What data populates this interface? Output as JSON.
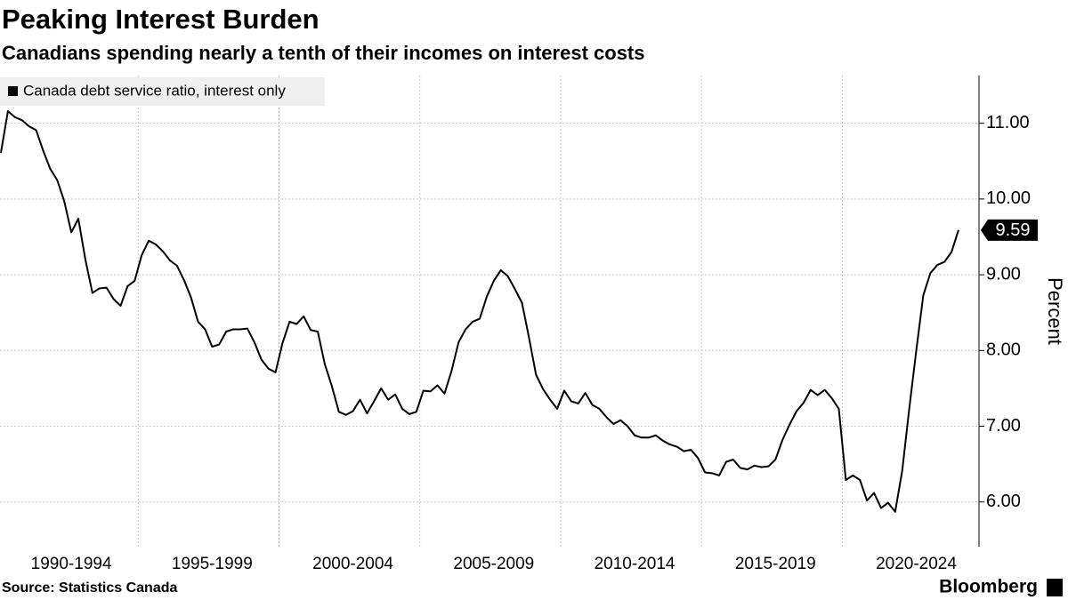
{
  "chart_data": {
    "type": "line",
    "title": "Peaking Interest Burden",
    "subtitle": "Canadians spending nearly a tenth of their incomes on interest costs",
    "y_axis_label": "Percent",
    "y_axis_position": "right",
    "legend_position": "top-left",
    "grid": true,
    "source": "Source: Statistics Canada",
    "brand": "Bloomberg",
    "categories": [
      null,
      null,
      null,
      null,
      null,
      null,
      null,
      null,
      null,
      null,
      "1990-1994",
      null,
      null,
      null,
      null,
      null,
      null,
      null,
      null,
      null,
      null,
      null,
      null,
      null,
      null,
      null,
      null,
      null,
      null,
      null,
      "1995-1999",
      null,
      null,
      null,
      null,
      null,
      null,
      null,
      null,
      null,
      null,
      null,
      null,
      null,
      null,
      null,
      null,
      null,
      null,
      null,
      "2000-2004",
      null,
      null,
      null,
      null,
      null,
      null,
      null,
      null,
      null,
      null,
      null,
      null,
      null,
      null,
      null,
      null,
      null,
      null,
      null,
      "2005-2009",
      null,
      null,
      null,
      null,
      null,
      null,
      null,
      null,
      null,
      null,
      null,
      null,
      null,
      null,
      null,
      null,
      null,
      null,
      null,
      "2010-2014",
      null,
      null,
      null,
      null,
      null,
      null,
      null,
      null,
      null,
      null,
      null,
      null,
      null,
      null,
      null,
      null,
      null,
      null,
      null,
      "2015-2019",
      null,
      null,
      null,
      null,
      null,
      null,
      null,
      null,
      null,
      null,
      null,
      null,
      null,
      null,
      null,
      null,
      null,
      null,
      null,
      "2020-2024",
      null,
      null,
      null,
      null,
      null,
      null
    ],
    "series": [
      {
        "name": "Canada debt service ratio, interest only",
        "color": "#000000",
        "values": [
          10.61,
          11.16,
          11.08,
          11.04,
          10.96,
          10.91,
          10.64,
          10.4,
          10.25,
          9.97,
          9.56,
          9.74,
          9.2,
          8.76,
          8.82,
          8.83,
          8.68,
          8.59,
          8.85,
          8.92,
          9.26,
          9.45,
          9.4,
          9.31,
          9.19,
          9.12,
          8.93,
          8.7,
          8.38,
          8.28,
          8.05,
          8.08,
          8.25,
          8.28,
          8.28,
          8.29,
          8.11,
          7.88,
          7.76,
          7.71,
          8.1,
          8.38,
          8.35,
          8.45,
          8.27,
          8.25,
          7.82,
          7.53,
          7.19,
          7.15,
          7.2,
          7.35,
          7.17,
          7.33,
          7.5,
          7.35,
          7.42,
          7.23,
          7.16,
          7.19,
          7.47,
          7.46,
          7.54,
          7.43,
          7.73,
          8.11,
          8.28,
          8.38,
          8.42,
          8.71,
          8.92,
          9.06,
          8.98,
          8.81,
          8.63,
          8.17,
          7.68,
          7.49,
          7.35,
          7.23,
          7.47,
          7.33,
          7.3,
          7.44,
          7.28,
          7.23,
          7.12,
          7.03,
          7.08,
          7.0,
          6.88,
          6.85,
          6.85,
          6.88,
          6.81,
          6.76,
          6.73,
          6.67,
          6.69,
          6.58,
          6.39,
          6.38,
          6.35,
          6.53,
          6.56,
          6.45,
          6.43,
          6.48,
          6.46,
          6.47,
          6.56,
          6.82,
          7.02,
          7.2,
          7.31,
          7.48,
          7.41,
          7.48,
          7.37,
          7.23,
          6.29,
          6.35,
          6.29,
          6.02,
          6.12,
          5.92,
          5.99,
          5.87,
          6.41,
          7.23,
          8.0,
          8.73,
          9.02,
          9.13,
          9.17,
          9.3,
          9.59
        ]
      }
    ],
    "ylim": [
      5.41,
      11.63
    ],
    "yticks": [
      {
        "value": 6,
        "label": "6.00"
      },
      {
        "value": 7,
        "label": "7.00"
      },
      {
        "value": 8,
        "label": "8.00"
      },
      {
        "value": 9,
        "label": "9.00"
      },
      {
        "value": 10,
        "label": "10.00"
      },
      {
        "value": 11,
        "label": "11.00"
      }
    ]
  }
}
